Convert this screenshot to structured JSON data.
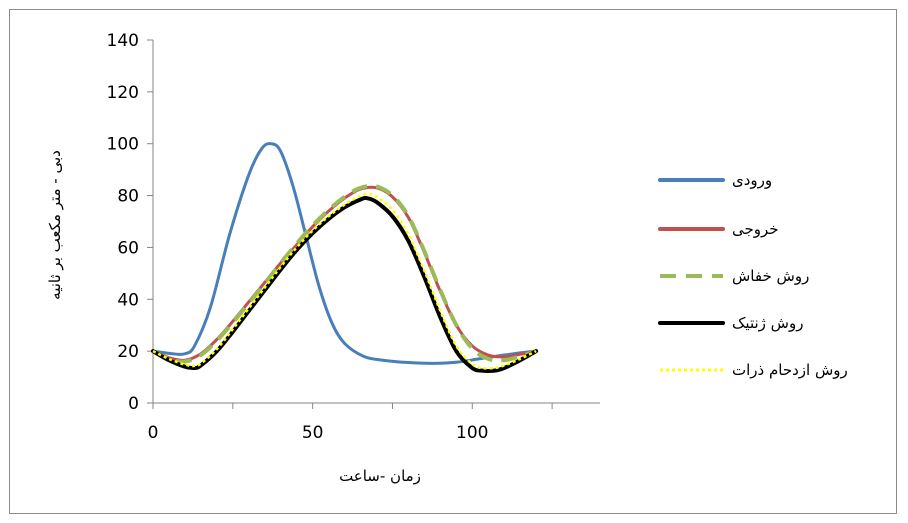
{
  "chart_data": {
    "type": "line",
    "xlabel": "زمان -ساعت",
    "ylabel": "دبی - متر مکعب بر ثانیه",
    "xlim": [
      0,
      140
    ],
    "ylim": [
      0,
      140
    ],
    "xticks": [
      0,
      50,
      100
    ],
    "yticks": [
      0,
      20,
      40,
      60,
      80,
      100,
      120,
      140
    ],
    "grid": false,
    "legend_position": "right",
    "series": [
      {
        "name": "ورودی",
        "color": "#4a7ebb",
        "style": "solid",
        "x": [
          0,
          6,
          10,
          13,
          18,
          24,
          30,
          34,
          37,
          40,
          44,
          48,
          52,
          56,
          60,
          66,
          72,
          80,
          88,
          95,
          102,
          110,
          116,
          120
        ],
        "y": [
          20,
          19,
          19,
          22,
          37,
          65,
          88,
          98,
          100,
          97,
          83,
          64,
          45,
          31,
          23,
          18,
          16.5,
          15.6,
          15.3,
          15.7,
          17,
          18.5,
          19.5,
          20
        ]
      },
      {
        "name": "خروجی",
        "color": "#c0504d",
        "style": "solid",
        "x": [
          0,
          5,
          10,
          15,
          20,
          25,
          30,
          35,
          40,
          45,
          50,
          55,
          60,
          65,
          70,
          75,
          80,
          85,
          90,
          95,
          100,
          105,
          110,
          115,
          120
        ],
        "y": [
          20,
          17.5,
          16.5,
          19,
          24.5,
          31.5,
          39,
          46.5,
          54,
          61,
          68,
          74,
          79,
          82.5,
          83,
          79.5,
          71.5,
          58,
          43,
          30,
          22,
          18.5,
          17.8,
          18.8,
          20
        ]
      },
      {
        "name": "روش خفاش",
        "color": "#9bbb59",
        "style": "dashed",
        "x": [
          0,
          5,
          10,
          15,
          20,
          25,
          30,
          35,
          40,
          45,
          50,
          55,
          60,
          65,
          70,
          75,
          80,
          85,
          90,
          95,
          100,
          105,
          110,
          115,
          120
        ],
        "y": [
          20,
          17,
          16,
          18.5,
          24,
          31,
          38.5,
          46,
          54,
          61.5,
          68.5,
          74.5,
          79.5,
          83,
          83.5,
          80,
          72,
          58.5,
          43.5,
          30,
          21,
          17,
          16.5,
          18,
          20
        ]
      },
      {
        "name": "روش ژنتیک",
        "color": "#000000",
        "style": "solid",
        "x": [
          0,
          5,
          10,
          13,
          15,
          20,
          25,
          30,
          35,
          40,
          45,
          50,
          55,
          60,
          65,
          67,
          70,
          75,
          80,
          85,
          90,
          95,
          100,
          103,
          107,
          110,
          115,
          120
        ],
        "y": [
          20,
          16.5,
          14,
          13.5,
          14.5,
          20,
          27.5,
          35.5,
          43.5,
          51.5,
          59,
          65.5,
          71,
          75.5,
          78.5,
          79,
          77.5,
          72,
          62.5,
          48.5,
          33,
          20,
          13.5,
          12.5,
          12.5,
          13.5,
          16.5,
          20
        ]
      },
      {
        "name": "روش ازدحام ذرات",
        "color": "#ffff00",
        "style": "dotted",
        "x": [
          0,
          5,
          10,
          13,
          15,
          20,
          25,
          30,
          35,
          40,
          45,
          50,
          55,
          60,
          65,
          68,
          70,
          75,
          80,
          85,
          90,
          95,
          100,
          103,
          107,
          110,
          115,
          120
        ],
        "y": [
          20,
          17,
          14.8,
          14.3,
          15.2,
          20.8,
          28.5,
          36.5,
          44.5,
          52.5,
          60,
          66.5,
          72,
          76.5,
          80,
          80.5,
          79.5,
          74.5,
          65,
          51,
          35.5,
          22,
          15,
          13.5,
          13.5,
          14.5,
          17,
          20
        ]
      }
    ]
  }
}
